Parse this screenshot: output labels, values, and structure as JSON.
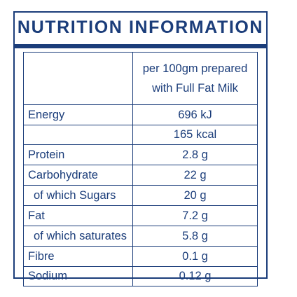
{
  "panel": {
    "title": "NUTRITION INFORMATION"
  },
  "table": {
    "header": {
      "label": "",
      "value_line1": "per 100gm prepared",
      "value_line2": "with Full Fat Milk"
    },
    "rows": [
      {
        "label": "Energy",
        "value": "696 kJ"
      },
      {
        "label": "",
        "value": "165 kcal"
      },
      {
        "label": "Protein",
        "value": "2.8 g"
      },
      {
        "label": "Carbohydrate",
        "value": "22 g"
      },
      {
        "label": "of which Sugars",
        "value": "20 g"
      },
      {
        "label": "Fat",
        "value": "7.2 g"
      },
      {
        "label": "of which saturates",
        "value": "5.8 g"
      },
      {
        "label": "Fibre",
        "value": "0.1 g"
      },
      {
        "label": "Sodium",
        "value": "0.12 g"
      }
    ]
  },
  "colors": {
    "ink": "#1b3d7a",
    "background": "#ffffff"
  }
}
